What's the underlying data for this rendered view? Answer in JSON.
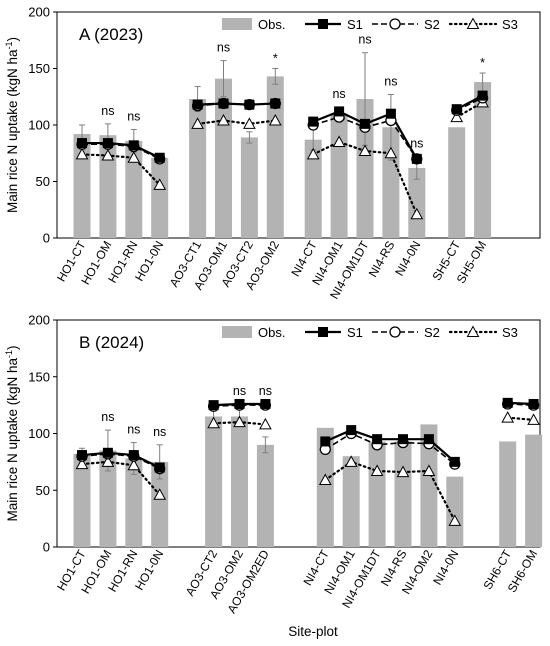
{
  "chart_data": [
    {
      "type": "bar",
      "title": "A (2023)",
      "ylabel": "Main rice N uptake (kgN ha-1)",
      "xlabel": "Site-plot",
      "ylim": [
        0,
        200
      ],
      "yticks": [
        0,
        50,
        100,
        150,
        200
      ],
      "legend": [
        "Obs.",
        "S1",
        "S2",
        "S3"
      ],
      "legend_position": "top",
      "grid": false,
      "groups": [
        {
          "categories": [
            "HO1-CT",
            "HO1-OM",
            "HO1-RN",
            "HO1-0N"
          ],
          "obs": [
            92,
            91,
            86,
            71
          ],
          "err": [
            8,
            10,
            10,
            2
          ],
          "S1": [
            84,
            84,
            82,
            71
          ],
          "S2": [
            83,
            83,
            81,
            70
          ],
          "S3": [
            74,
            73,
            71,
            47
          ],
          "ann": [
            "",
            "ns",
            "ns",
            ""
          ]
        },
        {
          "categories": [
            "AO3-CT1",
            "AO3-OM1",
            "AO3-CT2",
            "AO3-OM2"
          ],
          "obs": [
            123,
            141,
            89,
            143
          ],
          "err": [
            11,
            16,
            5,
            7
          ],
          "S1": [
            118,
            119,
            118,
            119
          ],
          "S2": [
            117,
            119,
            118,
            119
          ],
          "S3": [
            101,
            104,
            101,
            104
          ],
          "ann": [
            "",
            "ns",
            "",
            "*"
          ]
        },
        {
          "categories": [
            "NI4-CT",
            "NI4-OM1",
            "NI4-OM1DT",
            "NI4-RS",
            "NI4-0N"
          ],
          "obs": [
            87,
            110,
            123,
            98,
            62
          ],
          "err": [
            9,
            6,
            41,
            29,
            10
          ],
          "S1": [
            103,
            112,
            101,
            110,
            70
          ],
          "S2": [
            100,
            107,
            98,
            104,
            70
          ],
          "S3": [
            74,
            85,
            77,
            75,
            21
          ],
          "ann": [
            "",
            "ns",
            "ns",
            "ns",
            "ns"
          ]
        },
        {
          "categories": [
            "SH5-CT",
            "SH5-OM"
          ],
          "obs": [
            98,
            138
          ],
          "err": [
            0,
            8
          ],
          "S1": [
            114,
            126
          ],
          "S2": [
            113,
            124
          ],
          "S3": [
            107,
            120
          ],
          "ann": [
            "",
            "*"
          ]
        }
      ]
    },
    {
      "type": "bar",
      "title": "B (2024)",
      "ylabel": "Main rice N uptake (kgN ha-1)",
      "xlabel": "Site-plot",
      "ylim": [
        0,
        200
      ],
      "yticks": [
        0,
        50,
        100,
        150,
        200
      ],
      "legend": [
        "Obs.",
        "S1",
        "S2",
        "S3"
      ],
      "legend_position": "top",
      "grid": false,
      "groups": [
        {
          "categories": [
            "HO1-CT",
            "HO1-OM",
            "HO1-RN",
            "HO1-0N"
          ],
          "obs": [
            82,
            85,
            78,
            75
          ],
          "err": [
            5,
            18,
            14,
            15
          ],
          "S1": [
            81,
            83,
            81,
            70
          ],
          "S2": [
            80,
            82,
            80,
            69
          ],
          "S3": [
            73,
            75,
            72,
            46
          ],
          "ann": [
            "",
            "ns",
            "ns",
            "ns"
          ]
        },
        {
          "categories": [
            "AO3-CT2",
            "AO3-OM2",
            "AO3-OM2ED"
          ],
          "obs": [
            115,
            115,
            90
          ],
          "err": [
            5,
            6,
            7
          ],
          "S1": [
            125,
            126,
            126
          ],
          "S2": [
            124,
            125,
            125
          ],
          "S3": [
            109,
            110,
            108
          ],
          "ann": [
            "",
            "ns",
            "ns"
          ]
        },
        {
          "categories": [
            "NI4-CT",
            "NI4-OM1",
            "NI4-OM1DT",
            "NI4-RS",
            "NI4-OM2",
            "NI4-0N"
          ],
          "obs": [
            105,
            80,
            93,
            93,
            108,
            62
          ],
          "err": [
            0,
            0,
            0,
            0,
            0,
            0
          ],
          "S1": [
            93,
            103,
            95,
            95,
            95,
            75
          ],
          "S2": [
            86,
            100,
            90,
            92,
            91,
            73
          ],
          "S3": [
            59,
            75,
            67,
            66,
            67,
            23
          ],
          "ann": [
            "",
            "",
            "",
            "",
            "",
            ""
          ]
        },
        {
          "categories": [
            "SH6-CT",
            "SH6-OM"
          ],
          "obs": [
            93,
            99
          ],
          "err": [
            0,
            0
          ],
          "S1": [
            127,
            126
          ],
          "S2": [
            126,
            125
          ],
          "S3": [
            114,
            112
          ],
          "ann": [
            "",
            ""
          ]
        }
      ]
    }
  ]
}
